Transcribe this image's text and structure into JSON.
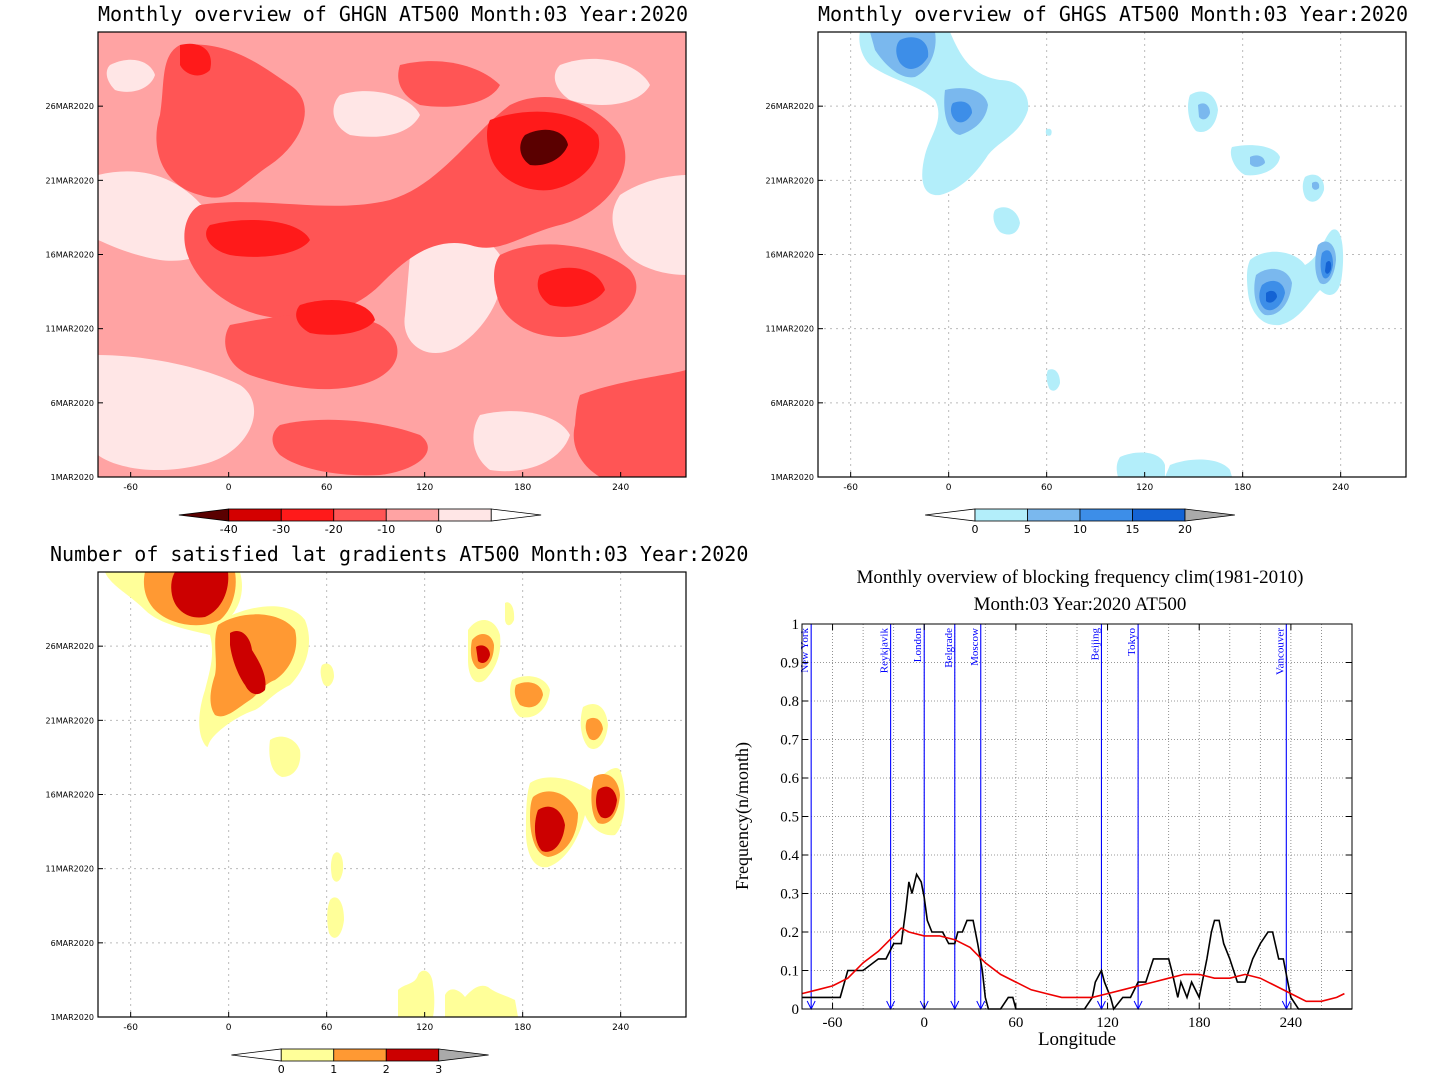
{
  "panel1": {
    "title": "Monthly overview of GHGN AT500 Month:03 Year:2020",
    "xticks": [
      "-60",
      "0",
      "60",
      "120",
      "180",
      "240"
    ],
    "yticks": [
      "1MAR2020",
      "6MAR2020",
      "11MAR2020",
      "16MAR2020",
      "21MAR2020",
      "26MAR2020"
    ],
    "colorbar": {
      "labels": [
        "-40",
        "-30",
        "-20",
        "-10",
        "0"
      ],
      "colors": [
        "#5a0000",
        "#d40000",
        "#ff1a1a",
        "#ff5555",
        "#ffa3a3",
        "#ffe6e6",
        "#ffffff"
      ]
    }
  },
  "panel2": {
    "title": "Monthly overview of GHGS AT500 Month:03 Year:2020",
    "xticks": [
      "-60",
      "0",
      "60",
      "120",
      "180",
      "240"
    ],
    "yticks": [
      "1MAR2020",
      "6MAR2020",
      "11MAR2020",
      "16MAR2020",
      "21MAR2020",
      "26MAR2020"
    ],
    "colorbar": {
      "labels": [
        "0",
        "5",
        "10",
        "15",
        "20"
      ],
      "colors": [
        "#ffffff",
        "#b3eefa",
        "#7ab8ee",
        "#3d8ee8",
        "#1463d4",
        "#aaaaaa"
      ]
    }
  },
  "panel3": {
    "title": "Number of satisfied lat gradients AT500 Month:03 Year:2020",
    "xticks": [
      "-60",
      "0",
      "60",
      "120",
      "180",
      "240"
    ],
    "yticks": [
      "1MAR2020",
      "6MAR2020",
      "11MAR2020",
      "16MAR2020",
      "21MAR2020",
      "26MAR2020"
    ],
    "colorbar": {
      "labels": [
        "0",
        "1",
        "2",
        "3"
      ],
      "colors": [
        "#ffffff",
        "#ffff99",
        "#ff9933",
        "#cc0000",
        "#aaaaaa"
      ]
    }
  },
  "panel4": {
    "title_line1": "Monthly overview of blocking frequency clim(1981-2010)",
    "title_line2": "Month:03 Year:2020  AT500",
    "ylabel": "Frequency(n/month)",
    "xlabel": "Longitude",
    "cities": [
      {
        "name": "New York",
        "lon": -74
      },
      {
        "name": "Reykjavik",
        "lon": -22
      },
      {
        "name": "London",
        "lon": 0
      },
      {
        "name": "Belgrade",
        "lon": 20
      },
      {
        "name": "Moscow",
        "lon": 37
      },
      {
        "name": "Beijing",
        "lon": 116
      },
      {
        "name": "Tokyo",
        "lon": 140
      },
      {
        "name": "Vancouver",
        "lon": 237
      }
    ]
  },
  "chart_data": [
    {
      "type": "heatmap",
      "title": "Monthly overview of GHGN AT500 Month:03 Year:2020",
      "xlim": [
        -80,
        280
      ],
      "ylim": [
        "1MAR2020",
        "31MAR2020"
      ],
      "levels": [
        -40,
        -30,
        -20,
        -10,
        0
      ]
    },
    {
      "type": "heatmap",
      "title": "Monthly overview of GHGS AT500 Month:03 Year:2020",
      "xlim": [
        -80,
        280
      ],
      "ylim": [
        "1MAR2020",
        "31MAR2020"
      ],
      "levels": [
        0,
        5,
        10,
        15,
        20
      ]
    },
    {
      "type": "heatmap",
      "title": "Number of satisfied lat gradients AT500 Month:03 Year:2020",
      "xlim": [
        -80,
        280
      ],
      "ylim": [
        "1MAR2020",
        "31MAR2020"
      ],
      "levels": [
        0,
        1,
        2,
        3
      ]
    },
    {
      "type": "line",
      "title": "Monthly overview of blocking frequency clim(1981-2010) Month:03 Year:2020  AT500",
      "xlabel": "Longitude",
      "ylabel": "Frequency(n/month)",
      "xlim": [
        -80,
        280
      ],
      "ylim": [
        0,
        1
      ],
      "xticks": [
        -60,
        0,
        60,
        120,
        180,
        240
      ],
      "yticks": [
        0,
        0.1,
        0.2,
        0.3,
        0.4,
        0.5,
        0.6,
        0.7,
        0.8,
        0.9,
        1
      ],
      "series": [
        {
          "color": "#000000",
          "x": [
            -80,
            -70,
            -55,
            -50,
            -40,
            -30,
            -25,
            -20,
            -15,
            -12,
            -10,
            -8,
            -5,
            -2,
            0,
            2,
            5,
            8,
            12,
            16,
            20,
            22,
            25,
            28,
            32,
            35,
            38,
            40,
            42,
            45,
            50,
            55,
            58,
            60,
            62,
            64,
            70,
            80,
            90,
            100,
            105,
            110,
            112,
            116,
            118,
            122,
            124,
            130,
            135,
            140,
            145,
            150,
            155,
            160,
            162,
            166,
            168,
            172,
            175,
            180,
            185,
            188,
            190,
            193,
            196,
            200,
            205,
            210,
            215,
            220,
            225,
            228,
            232,
            235,
            238,
            240,
            245,
            255,
            280
          ],
          "y": [
            0.03,
            0.03,
            0.03,
            0.1,
            0.1,
            0.13,
            0.13,
            0.17,
            0.17,
            0.26,
            0.33,
            0.3,
            0.35,
            0.33,
            0.29,
            0.23,
            0.2,
            0.2,
            0.2,
            0.17,
            0.17,
            0.2,
            0.2,
            0.23,
            0.23,
            0.17,
            0.1,
            0.03,
            0.0,
            0.0,
            0.0,
            0.03,
            0.03,
            0.0,
            0.0,
            0.0,
            0.0,
            0.0,
            0.0,
            0.0,
            0.0,
            0.03,
            0.07,
            0.1,
            0.07,
            0.03,
            0.0,
            0.03,
            0.03,
            0.07,
            0.07,
            0.13,
            0.13,
            0.13,
            0.1,
            0.03,
            0.07,
            0.03,
            0.07,
            0.03,
            0.13,
            0.2,
            0.23,
            0.23,
            0.17,
            0.13,
            0.07,
            0.07,
            0.13,
            0.17,
            0.2,
            0.2,
            0.13,
            0.13,
            0.07,
            0.03,
            0.0,
            0.0,
            0.0
          ]
        },
        {
          "color": "#ee0000",
          "x": [
            -80,
            -70,
            -60,
            -50,
            -40,
            -30,
            -20,
            -15,
            -10,
            0,
            10,
            20,
            30,
            40,
            50,
            60,
            70,
            80,
            90,
            100,
            110,
            120,
            130,
            140,
            150,
            160,
            170,
            180,
            190,
            200,
            210,
            220,
            230,
            240,
            250,
            260,
            270,
            275
          ],
          "y": [
            0.04,
            0.05,
            0.06,
            0.08,
            0.12,
            0.15,
            0.19,
            0.21,
            0.2,
            0.19,
            0.19,
            0.18,
            0.16,
            0.12,
            0.09,
            0.07,
            0.05,
            0.04,
            0.03,
            0.03,
            0.03,
            0.04,
            0.05,
            0.06,
            0.07,
            0.08,
            0.09,
            0.09,
            0.08,
            0.08,
            0.09,
            0.08,
            0.06,
            0.04,
            0.02,
            0.02,
            0.03,
            0.04
          ]
        }
      ]
    }
  ]
}
